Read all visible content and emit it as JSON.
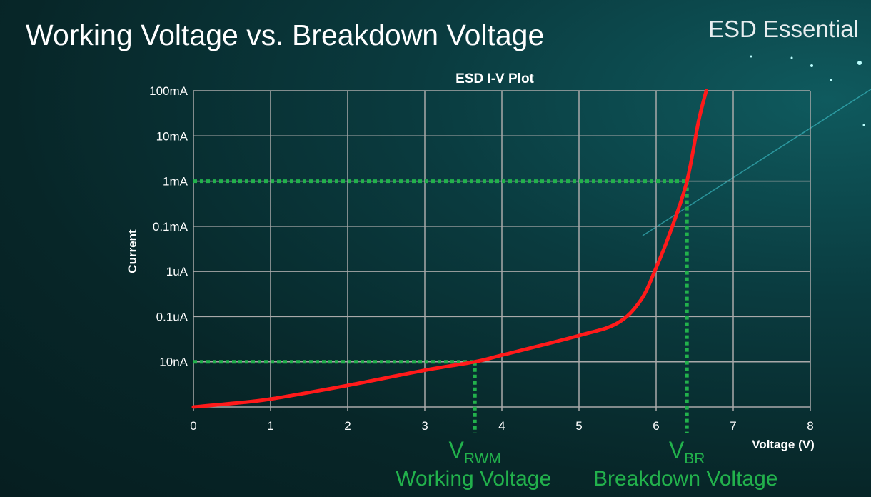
{
  "slide": {
    "title": "Working Voltage vs. Breakdown Voltage",
    "brand": "ESD Essential"
  },
  "chart_data": {
    "type": "line",
    "title": "ESD I-V Plot",
    "xlabel": "Voltage (V)",
    "ylabel": "Current",
    "xlim": [
      0,
      8
    ],
    "x_ticks": [
      0,
      1,
      2,
      3,
      4,
      5,
      6,
      7,
      8
    ],
    "y_scale": "log",
    "y_ticks": [
      {
        "label": "",
        "value": 1e-09
      },
      {
        "label": "10nA",
        "value": 1e-08
      },
      {
        "label": "0.1uA",
        "value": 1e-07
      },
      {
        "label": "1uA",
        "value": 1e-06
      },
      {
        "label": "0.1mA",
        "value": 0.0001
      },
      {
        "label": "1mA",
        "value": 0.001
      },
      {
        "label": "10mA",
        "value": 0.01
      },
      {
        "label": "100mA",
        "value": 0.1
      }
    ],
    "grid": true,
    "series": [
      {
        "color": "#ff1a1a",
        "x": [
          0,
          0.5,
          1,
          2,
          3,
          3.65,
          4,
          5,
          5.5,
          5.8,
          6,
          6.2,
          6.4,
          6.55,
          6.65
        ],
        "y": [
          1e-09,
          1.2e-09,
          1.5e-09,
          3e-09,
          6.5e-09,
          1e-08,
          1.4e-08,
          3.8e-08,
          7.2e-08,
          2.3e-07,
          1.45e-06,
          8e-05,
          0.001,
          0.021,
          0.1
        ]
      }
    ],
    "annotations": [
      {
        "x": 3.65,
        "y": 1e-08,
        "symbol": "V",
        "subscript": "RWM",
        "label": "Working Voltage",
        "color": "#22b14c"
      },
      {
        "x": 6.4,
        "y": 0.001,
        "symbol": "V",
        "subscript": "BR",
        "label": "Breakdown Voltage",
        "color": "#22b14c"
      }
    ]
  }
}
